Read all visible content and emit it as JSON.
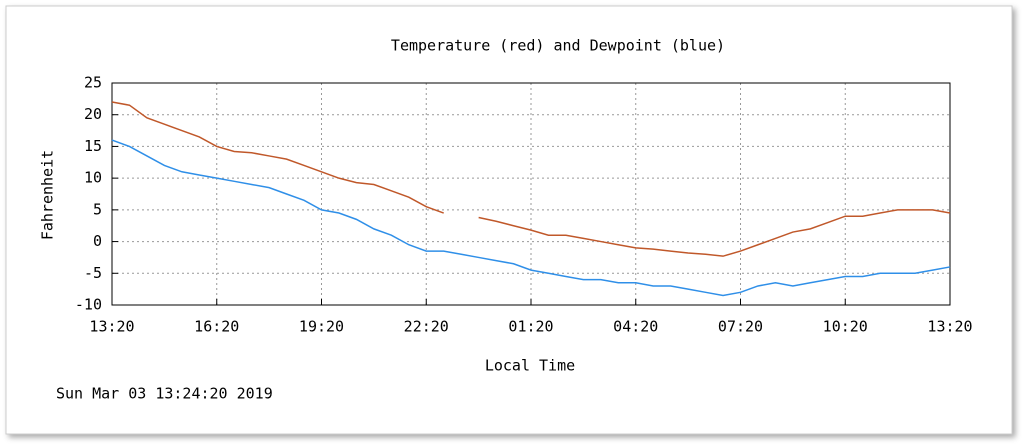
{
  "chart_data": {
    "type": "line",
    "title": "Temperature (red) and Dewpoint (blue)",
    "x_label": "Local Time",
    "y_label": "Fahrenheit",
    "annotation": "Sun Mar 03 13:24:20 2019",
    "x": [
      0,
      0.5,
      1,
      1.5,
      2,
      2.5,
      3,
      3.5,
      4,
      4.5,
      5,
      5.5,
      6,
      6.5,
      7,
      7.5,
      8,
      8.5,
      9,
      9.5,
      10,
      10.5,
      11,
      11.5,
      12,
      12.5,
      13,
      13.5,
      14,
      14.5,
      15,
      15.5,
      16,
      16.5,
      17,
      17.5,
      18,
      18.5,
      19,
      19.5,
      20,
      20.5,
      21,
      21.5,
      22,
      22.5,
      23,
      23.5,
      24
    ],
    "series": [
      {
        "color": "#c0582a",
        "values": [
          22,
          21.5,
          19.5,
          18.5,
          17.5,
          16.5,
          15,
          14.2,
          14,
          13.5,
          13,
          12,
          11,
          10,
          9.3,
          9,
          8,
          7,
          5.5,
          4.5,
          null,
          3.8,
          3.2,
          2.5,
          1.8,
          1,
          1,
          0.5,
          0,
          -0.5,
          -1,
          -1.2,
          -1.5,
          -1.8,
          -2,
          -2.3,
          -1.5,
          -0.5,
          0.5,
          1.5,
          2,
          3,
          4,
          4,
          4.5,
          5,
          5,
          5,
          4.5
        ]
      },
      {
        "color": "#2f8fe8",
        "values": [
          16,
          15,
          13.5,
          12,
          11,
          10.5,
          10,
          9.5,
          9,
          8.5,
          7.5,
          6.5,
          5,
          4.5,
          3.5,
          2,
          1,
          -0.5,
          -1.5,
          -1.5,
          -2,
          -2.5,
          -3,
          -3.5,
          -4.5,
          -5,
          -5.5,
          -6,
          -6,
          -6.5,
          -6.5,
          -7,
          -7,
          -7.5,
          -8,
          -8.5,
          -8,
          -7,
          -6.5,
          -7,
          -6.5,
          -6,
          -5.5,
          -5.5,
          -5,
          -5,
          -5,
          -4.5,
          -4
        ]
      }
    ],
    "xlim": [
      0,
      24
    ],
    "xticks": [
      {
        "value": 0,
        "label": "13:20"
      },
      {
        "value": 3,
        "label": "16:20"
      },
      {
        "value": 6,
        "label": "19:20"
      },
      {
        "value": 9,
        "label": "22:20"
      },
      {
        "value": 12,
        "label": "01:20"
      },
      {
        "value": 15,
        "label": "04:20"
      },
      {
        "value": 18,
        "label": "07:20"
      },
      {
        "value": 21,
        "label": "10:20"
      },
      {
        "value": 24,
        "label": "13:20"
      }
    ],
    "ylim": [
      -10,
      25
    ],
    "yticks": [
      -10,
      -5,
      0,
      5,
      10,
      15,
      20,
      25
    ],
    "grid": true
  }
}
